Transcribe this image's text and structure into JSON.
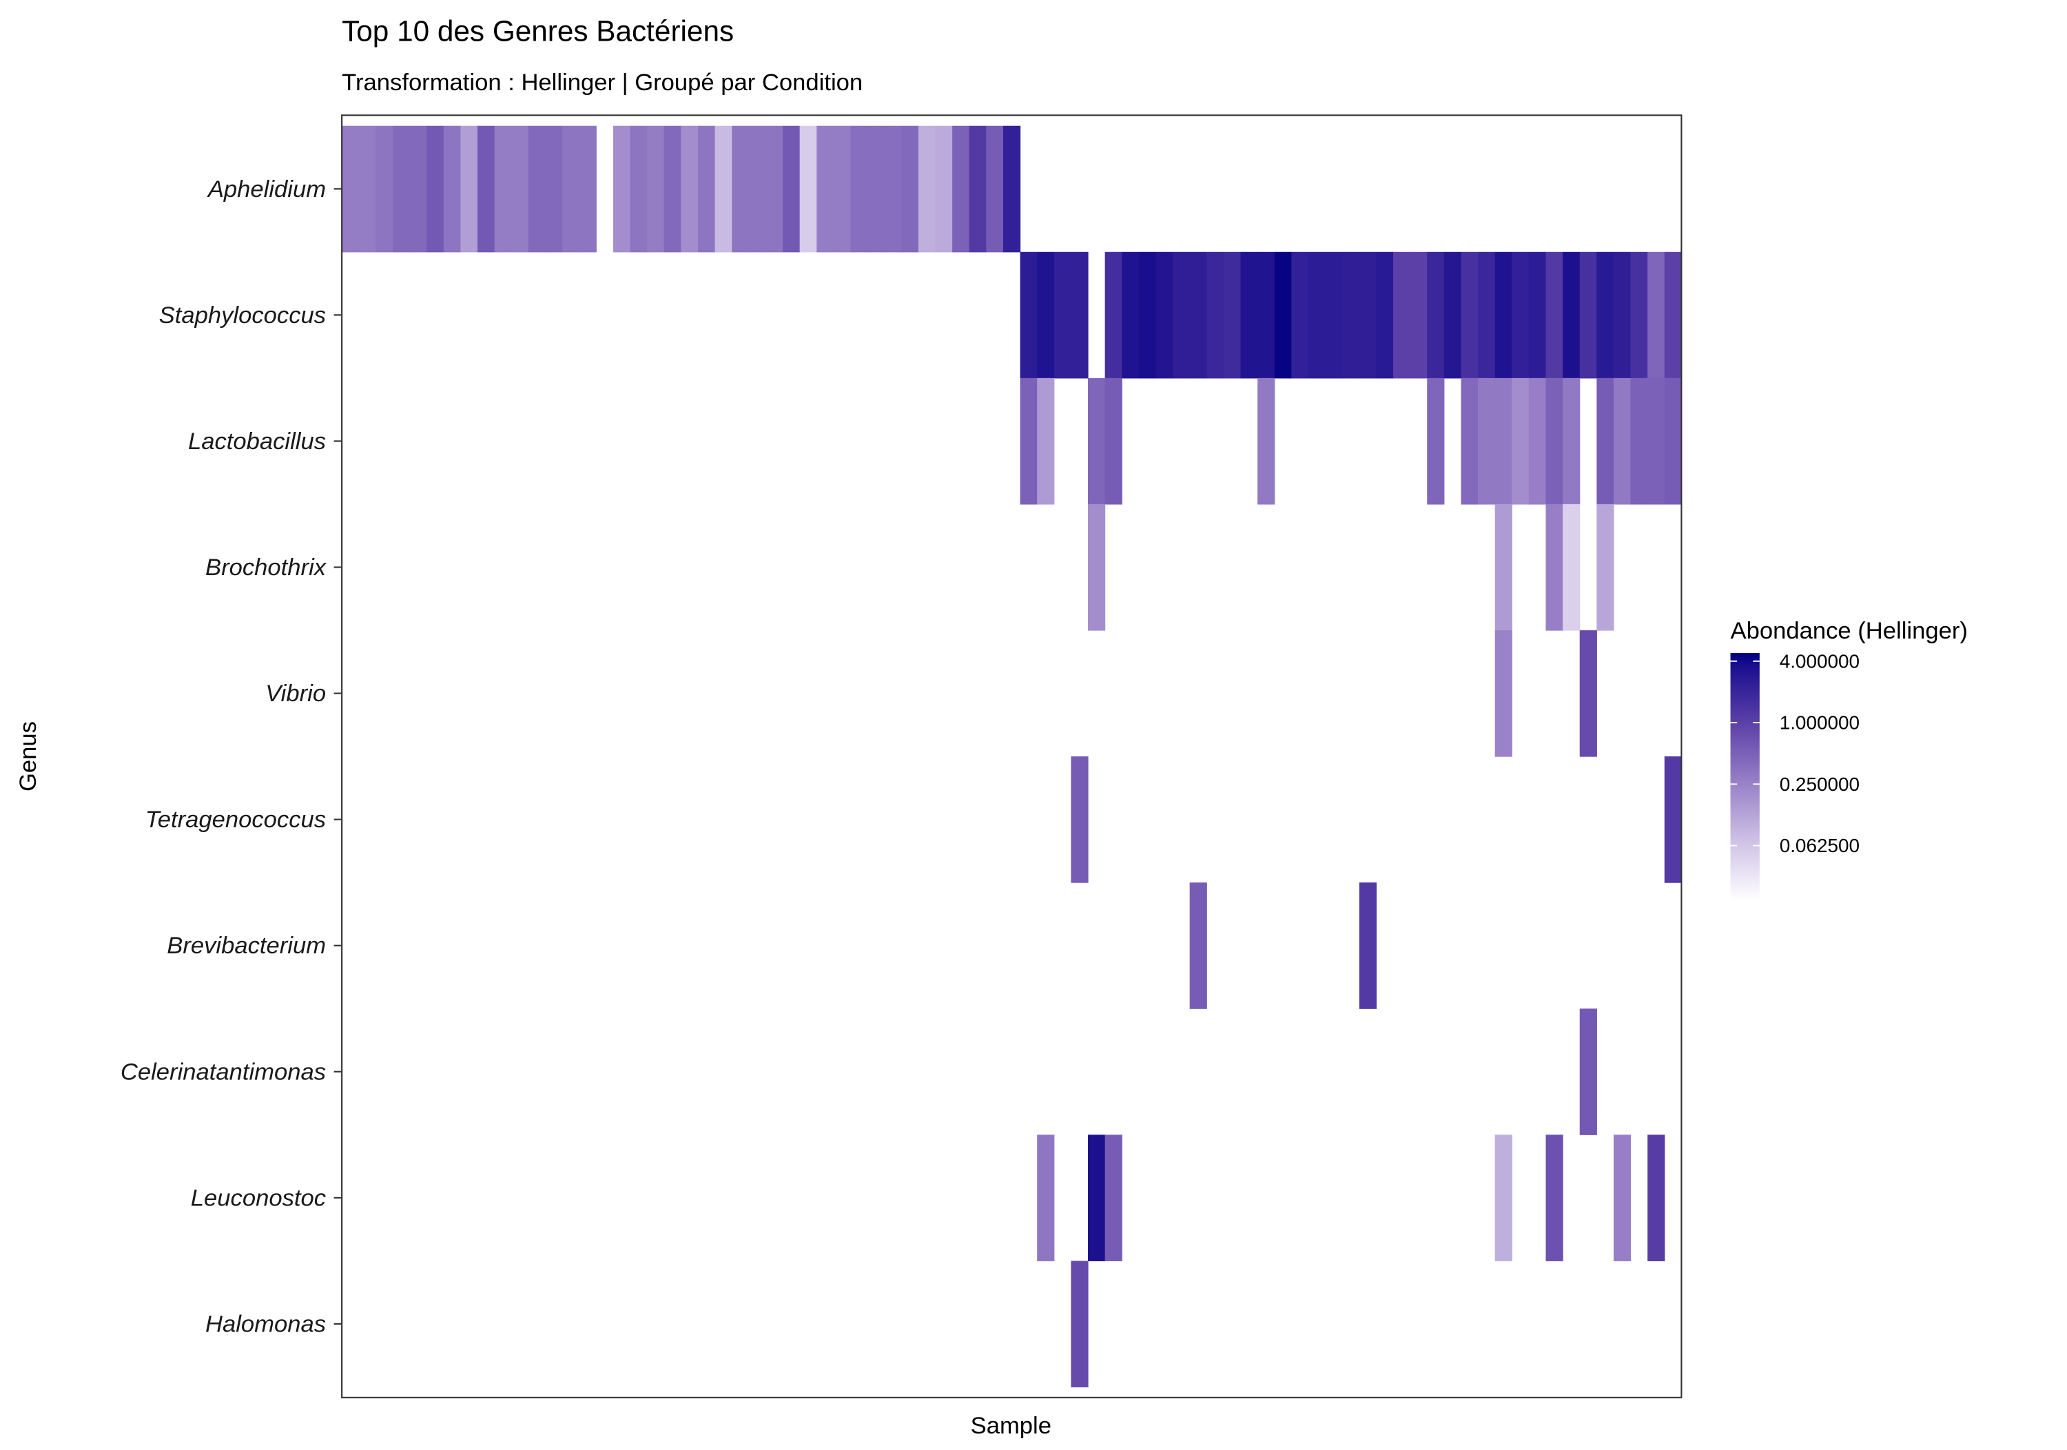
{
  "chart_data": {
    "type": "heatmap",
    "title": "Top 10 des Genres Bactériens",
    "subtitle": "Transformation : Hellinger | Groupé par Condition",
    "xlabel": "Sample",
    "ylabel": "Genus",
    "n_samples": 79,
    "genera": [
      "Aphelidium",
      "Staphylococcus",
      "Lactobacillus",
      "Brochothrix",
      "Vibrio",
      "Tetragenococcus",
      "Brevibacterium",
      "Celerinatantimonas",
      "Leuconostoc",
      "Halomonas"
    ],
    "legend": {
      "title": "Abondance (Hellinger)",
      "scale": "log2",
      "breaks": [
        4,
        1,
        0.25,
        0.0625
      ],
      "break_labels": [
        "4.000000",
        "1.000000",
        "0.250000",
        "0.062500"
      ],
      "range": [
        0.018,
        4.8
      ],
      "placement": "right"
    },
    "colors": {
      "low": "#ffffff",
      "c0625": "#d2c6e8",
      "c25": "#9a82c8",
      "c1": "#5c40a8",
      "c4": "#140a8c",
      "high": "#000080"
    },
    "cells": {
      "Aphelidium": [
        [
          0,
          0.28
        ],
        [
          1,
          0.28
        ],
        [
          2,
          0.33
        ],
        [
          3,
          0.42
        ],
        [
          4,
          0.42
        ],
        [
          5,
          0.6
        ],
        [
          6,
          0.33
        ],
        [
          7,
          0.14
        ],
        [
          8,
          0.6
        ],
        [
          9,
          0.28
        ],
        [
          10,
          0.28
        ],
        [
          11,
          0.42
        ],
        [
          12,
          0.42
        ],
        [
          13,
          0.33
        ],
        [
          14,
          0.33
        ],
        [
          16,
          0.2
        ],
        [
          17,
          0.33
        ],
        [
          18,
          0.28
        ],
        [
          19,
          0.42
        ],
        [
          20,
          0.2
        ],
        [
          21,
          0.33
        ],
        [
          22,
          0.08
        ],
        [
          23,
          0.33
        ],
        [
          24,
          0.33
        ],
        [
          25,
          0.33
        ],
        [
          26,
          0.6
        ],
        [
          27,
          0.055
        ],
        [
          28,
          0.28
        ],
        [
          29,
          0.28
        ],
        [
          30,
          0.38
        ],
        [
          31,
          0.38
        ],
        [
          32,
          0.38
        ],
        [
          33,
          0.42
        ],
        [
          34,
          0.1
        ],
        [
          35,
          0.11
        ],
        [
          36,
          0.5
        ],
        [
          37,
          1.2
        ],
        [
          38,
          0.55
        ],
        [
          39,
          2.3
        ]
      ],
      "Staphylococcus": [
        [
          40,
          2.5
        ],
        [
          41,
          3.2
        ],
        [
          42,
          2.3
        ],
        [
          43,
          2.3
        ],
        [
          45,
          1.6
        ],
        [
          46,
          3.2
        ],
        [
          47,
          3.6
        ],
        [
          48,
          3.0
        ],
        [
          49,
          2.4
        ],
        [
          50,
          2.4
        ],
        [
          51,
          1.9
        ],
        [
          52,
          1.7
        ],
        [
          53,
          3.1
        ],
        [
          54,
          3.1
        ],
        [
          55,
          4.5
        ],
        [
          56,
          2.3
        ],
        [
          57,
          2.5
        ],
        [
          58,
          2.5
        ],
        [
          59,
          2.4
        ],
        [
          60,
          2.4
        ],
        [
          61,
          2.7
        ],
        [
          62,
          1.0
        ],
        [
          63,
          1.0
        ],
        [
          64,
          1.9
        ],
        [
          65,
          2.9
        ],
        [
          66,
          1.5
        ],
        [
          67,
          1.9
        ],
        [
          68,
          3.2
        ],
        [
          69,
          2.3
        ],
        [
          70,
          2.5
        ],
        [
          71,
          1.2
        ],
        [
          72,
          3.4
        ],
        [
          73,
          1.5
        ],
        [
          74,
          2.7
        ],
        [
          75,
          2.4
        ],
        [
          76,
          1.5
        ],
        [
          77,
          0.45
        ],
        [
          78,
          1.0
        ]
      ],
      "Lactobacillus": [
        [
          40,
          0.5
        ],
        [
          41,
          0.15
        ],
        [
          44,
          0.45
        ],
        [
          45,
          0.55
        ],
        [
          54,
          0.3
        ],
        [
          64,
          0.45
        ],
        [
          66,
          0.42
        ],
        [
          67,
          0.3
        ],
        [
          68,
          0.3
        ],
        [
          69,
          0.2
        ],
        [
          70,
          0.27
        ],
        [
          71,
          0.5
        ],
        [
          72,
          0.3
        ],
        [
          74,
          0.55
        ],
        [
          75,
          0.3
        ],
        [
          76,
          0.5
        ],
        [
          77,
          0.5
        ],
        [
          78,
          0.55
        ]
      ],
      "Brochothrix": [
        [
          44,
          0.2
        ],
        [
          68,
          0.15
        ],
        [
          71,
          0.27
        ],
        [
          72,
          0.05
        ],
        [
          74,
          0.12
        ]
      ],
      "Vibrio": [
        [
          68,
          0.25
        ],
        [
          73,
          0.8
        ]
      ],
      "Tetragenococcus": [
        [
          43,
          0.55
        ],
        [
          78,
          1.2
        ]
      ],
      "Brevibacterium": [
        [
          50,
          0.55
        ],
        [
          60,
          1.2
        ]
      ],
      "Celerinatantimonas": [
        [
          73,
          0.6
        ]
      ],
      "Leuconostoc": [
        [
          41,
          0.32
        ],
        [
          44,
          3.4
        ],
        [
          45,
          0.55
        ],
        [
          68,
          0.1
        ],
        [
          71,
          0.7
        ],
        [
          75,
          0.27
        ],
        [
          77,
          1.1
        ]
      ],
      "Halomonas": [
        [
          43,
          0.8
        ]
      ]
    }
  }
}
